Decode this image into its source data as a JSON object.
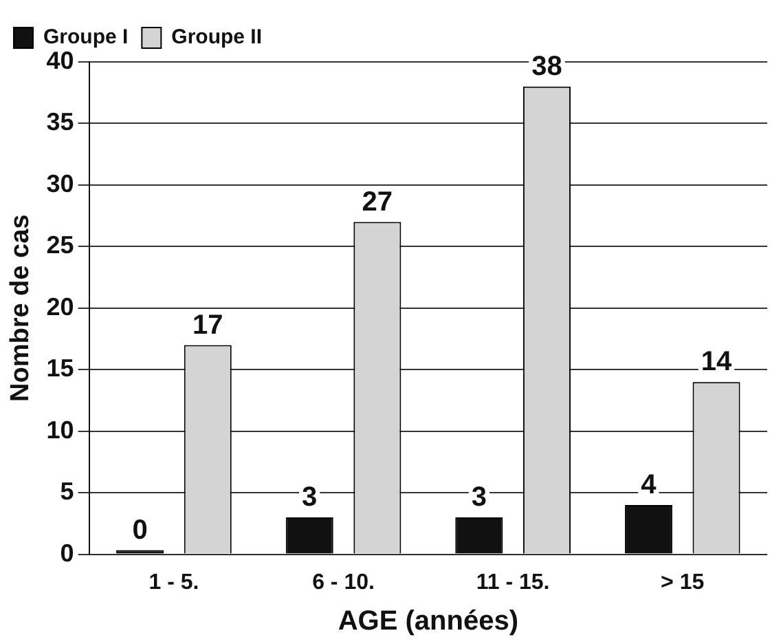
{
  "chart_data": {
    "type": "bar",
    "xlabel": "AGE (années)",
    "ylabel": "Nombre de cas",
    "categories": [
      "1 - 5.",
      "6 - 10.",
      "11 - 15.",
      "> 15"
    ],
    "series": [
      {
        "name": "Groupe I",
        "color": "#111111",
        "values": [
          0,
          3,
          3,
          4
        ]
      },
      {
        "name": "Groupe II",
        "color": "#d4d4d4",
        "values": [
          17,
          27,
          38,
          14
        ]
      }
    ],
    "ylim": [
      0,
      40
    ],
    "yticks": [
      0,
      5,
      10,
      15,
      20,
      25,
      30,
      35,
      40
    ],
    "grid": "y",
    "legend": "top left",
    "data_labels": true
  }
}
